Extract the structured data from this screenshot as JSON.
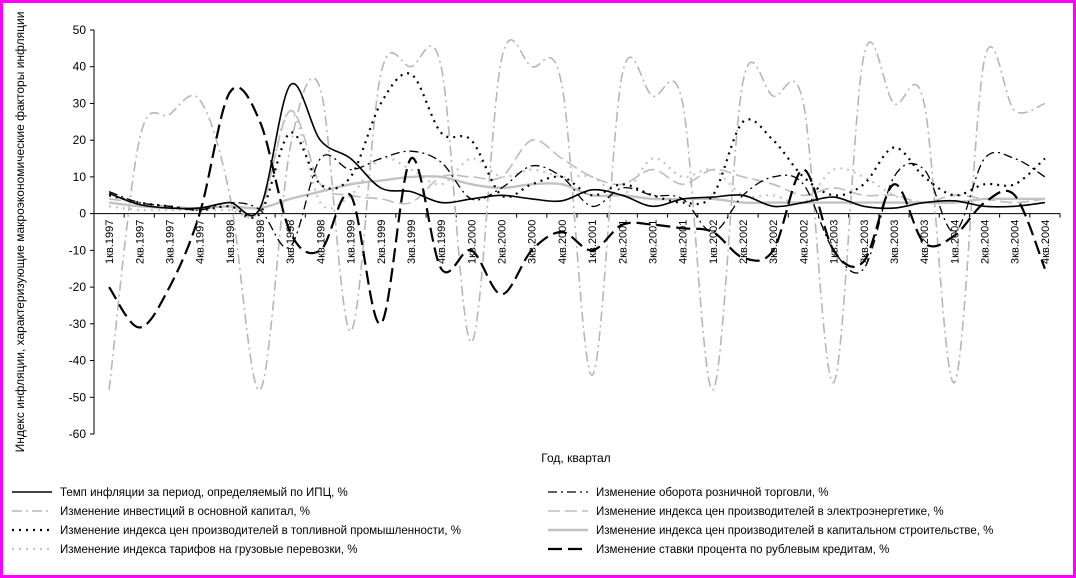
{
  "chart_data": {
    "type": "line",
    "xlabel": "Год, квартал",
    "ylabel": "Индекс инфляции, характеризующие макроэкономические факторы инфляции",
    "ylim": [
      -60,
      50
    ],
    "yticks": [
      50,
      40,
      30,
      20,
      10,
      0,
      -10,
      -20,
      -30,
      -40,
      -50,
      -60
    ],
    "grid": false,
    "legend_position": "bottom",
    "categories": [
      "1кв.1997",
      "2кв.1997",
      "3кв.1997",
      "4кв.1997",
      "1кв.1998",
      "2кв.1998",
      "3кв.1998",
      "4кв.1998",
      "1кв.1999",
      "2кв.1999",
      "3кв.1999",
      "4кв.1999",
      "1кв.2000",
      "2кв.2000",
      "3кв.2000",
      "4кв.2000",
      "1кв.2001",
      "2кв.2001",
      "3кв.2001",
      "4кв.2001",
      "1кв.2002",
      "2кв.2002",
      "3кв.2002",
      "4кв.2002",
      "1кв.2003",
      "2кв.2003",
      "3кв.2003",
      "4кв.2003",
      "1кв.2004",
      "2кв.2004",
      "3кв.2004",
      "4кв.2004"
    ],
    "series": [
      {
        "name": "Темп инфляции за период, определяемый по ИПЦ, %",
        "color": "#000000",
        "dash": "",
        "width": 1.6,
        "values": [
          5.5,
          2.5,
          1.5,
          1.5,
          3,
          1.5,
          35,
          20,
          15,
          7,
          6,
          3,
          4,
          5,
          4,
          3.5,
          6.5,
          5,
          2,
          4,
          4.5,
          5,
          2,
          3,
          4.5,
          2,
          1.5,
          3,
          3.5,
          2,
          2,
          3
        ]
      },
      {
        "name": "Изменение оборота розничной торговли, %",
        "color": "#000000",
        "dash": "9 4 2 4",
        "width": 1.3,
        "values": [
          6,
          3,
          2,
          1,
          3,
          1,
          -9,
          15,
          12,
          15,
          17,
          14,
          4,
          7,
          13,
          10,
          2,
          7,
          5,
          4,
          -5,
          5,
          10,
          8,
          -10,
          -15,
          10,
          12,
          -5,
          15,
          15,
          10
        ]
      },
      {
        "name": "Изменение инвестиций в основной капитал, %",
        "color": "#b7b7b7",
        "dash": "10 4 2 4",
        "width": 1.6,
        "values": [
          -48,
          20,
          27,
          31,
          5,
          -48,
          18,
          34,
          -32,
          38,
          40,
          40,
          -35,
          42,
          40,
          35,
          -44,
          38,
          32,
          30,
          -48,
          36,
          32,
          30,
          -46,
          43,
          30,
          30,
          -46,
          42,
          28,
          30
        ]
      },
      {
        "name": "Изменение индекса цен производителей в электроэнергетике, %",
        "color": "#bdbdbd",
        "dash": "12 5",
        "width": 1.6,
        "values": [
          4,
          3,
          2,
          1.5,
          2,
          1,
          28,
          8,
          5,
          4,
          3,
          10,
          10,
          10,
          20,
          15,
          10,
          8,
          12,
          8,
          12,
          10,
          8,
          5,
          7,
          5,
          5,
          3,
          5,
          4,
          3,
          4
        ]
      },
      {
        "name": "Изменение индекса цен производителей в топливной промышленности, %",
        "color": "#000000",
        "dash": "2 5",
        "width": 2.2,
        "values": [
          5,
          3,
          2,
          1,
          2,
          0,
          22,
          8,
          10,
          30,
          38,
          22,
          20,
          5,
          8,
          10,
          5,
          8,
          5,
          3,
          5,
          25,
          20,
          10,
          5,
          8,
          18,
          10,
          5,
          8,
          8,
          15
        ]
      },
      {
        "name": "Изменение индекса цен производителей в капитальном строительстве, %",
        "color": "#c2c2c2",
        "dash": "",
        "width": 2.4,
        "values": [
          3,
          2,
          1.5,
          1.5,
          2,
          1.5,
          4,
          6,
          8,
          9,
          10,
          10,
          8,
          7,
          8,
          8,
          5,
          5,
          4,
          4,
          4,
          3,
          3,
          3,
          3,
          3,
          3,
          3,
          3,
          4,
          4,
          4
        ]
      },
      {
        "name": "Изменение индекса тарифов на грузовые перевозки, %",
        "color": "#c4c4c4",
        "dash": "2 5",
        "width": 2.2,
        "values": [
          2,
          1,
          1,
          1,
          1,
          1,
          28,
          3,
          5,
          15,
          12,
          8,
          15,
          10,
          12,
          10,
          10,
          5,
          15,
          10,
          12,
          5,
          5,
          3,
          12,
          10,
          5,
          3,
          3,
          4,
          4,
          4
        ]
      },
      {
        "name": "Изменение ставки процента по рублевым кредитам, %",
        "color": "#000000",
        "dash": "14 6",
        "width": 2.2,
        "values": [
          -20,
          -31,
          -20,
          0,
          33,
          25,
          -5,
          -10,
          5,
          -30,
          15,
          -15,
          -10,
          -22,
          -10,
          -5,
          -10,
          -3,
          -3,
          -4,
          -5,
          -12,
          -10,
          12,
          -10,
          -13,
          8,
          -8,
          -6,
          3,
          5,
          -15
        ]
      }
    ]
  }
}
